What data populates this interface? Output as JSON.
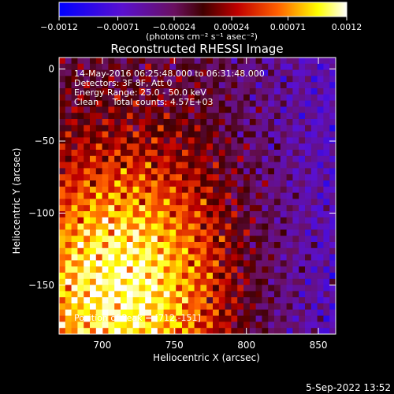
{
  "chart_data": {
    "type": "heatmap",
    "title": "Reconstructed RHESSI Image",
    "xlabel": "Heliocentric X (arcsec)",
    "ylabel": "Heliocentric Y (arcsec)",
    "xlim": [
      670,
      862
    ],
    "ylim": [
      -184,
      8
    ],
    "x_ticks": [
      "700",
      "750",
      "800",
      "850"
    ],
    "x_tick_values": [
      700,
      750,
      800,
      850
    ],
    "y_ticks": [
      "0",
      "−50",
      "−100",
      "−150"
    ],
    "y_tick_values": [
      0,
      -50,
      -100,
      -150
    ],
    "colorbar": {
      "range": [
        -0.0012,
        0.0012
      ],
      "tick_labels": [
        "−0.0012",
        "−0.00071",
        "−0.00024",
        "0.00024",
        "0.00071",
        "0.0012"
      ],
      "tick_values": [
        -0.0012,
        -0.00071,
        -0.00024,
        0.00024,
        0.00071,
        0.0012
      ],
      "units_label": "(photons cm⁻² s⁻¹ asec⁻²)",
      "colormap": "blue-purple-red-yellow-white"
    },
    "annotations": [
      "14-May-2016 06:25:48.000 to 06:31:48.000",
      "Detectors: 3F 8F, Att 0",
      "Energy Range: 25.0 - 50.0 keV",
      "Clean     Total counts: 4.57E+03"
    ],
    "peak_label": "Position of Peak = [712,-151]",
    "peak_position": [
      712,
      -151
    ],
    "grid": false
  },
  "footer": {
    "timestamp": "5-Sep-2022 13:52"
  },
  "colors": {
    "background": "#000000",
    "text": "#ffffff"
  }
}
